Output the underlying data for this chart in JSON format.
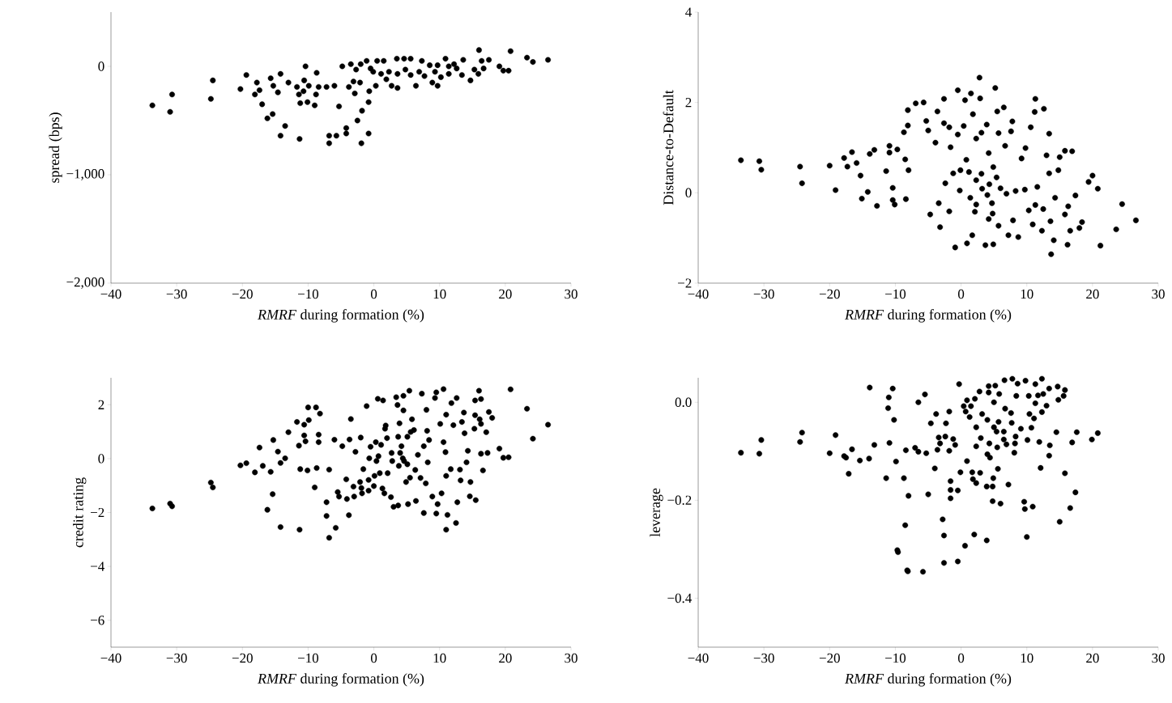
{
  "chart_data": [
    {
      "type": "scatter",
      "xlabel": "*RMRF* during formation (%)",
      "ylabel": "spread (bps)",
      "color": "#000000",
      "marker": "circle",
      "xlim": [
        -40,
        30
      ],
      "ylim": [
        -2000,
        500
      ],
      "xticks": [
        {
          "value": -40,
          "label": "−40"
        },
        {
          "value": -30,
          "label": "−30"
        },
        {
          "value": -20,
          "label": "−20"
        },
        {
          "value": -10,
          "label": "−10"
        },
        0,
        10,
        20,
        30
      ],
      "yticks": [
        {
          "value": -2000,
          "label": "−2,000"
        },
        {
          "value": -1000,
          "label": "−1,000"
        },
        0
      ],
      "x": [
        -33.7,
        -31.0,
        -30.7,
        -24.8,
        -24.5,
        -20.3,
        -19.4,
        -18.1,
        -17.8,
        -17.4,
        -17.0,
        -16.2,
        -15.4,
        -15.7,
        -15.3,
        -14.6,
        -14.2,
        -13.5,
        -14.2,
        -13.0,
        -11.7,
        -11.4,
        -11.2,
        -11.3,
        -10.7,
        -10.4,
        -10.6,
        -10.1,
        -9.9,
        -9.0,
        -8.8,
        -8.7,
        -8.4,
        -7.2,
        -6.8,
        -6.8,
        -6.0,
        -5.7,
        -5.3,
        -4.8,
        -4.2,
        -4.2,
        -3.8,
        -3.5,
        -3.1,
        -2.9,
        -2.7,
        -2.5,
        -2.0,
        -2.1,
        -1.9,
        -1.8,
        -0.8,
        -0.8,
        -0.7,
        -1.1,
        -0.5,
        0.3,
        0.5,
        1.5,
        1.9,
        2.7,
        3.6,
        3.5,
        4.6,
        5.6,
        6.4,
        7.3,
        8.5,
        8.9,
        9.7,
        10.9,
        12.2,
        13.6,
        14.7,
        16.0,
        16.4,
        17.5,
        19.1,
        19.7,
        20.5,
        20.8,
        23.3,
        24.2,
        26.5,
        -0.1,
        1.1,
        2.3,
        3.6,
        4.8,
        5.6,
        6.9,
        7.7,
        9.3,
        10.2,
        11.4,
        12.6,
        13.4,
        15.3,
        15.9,
        16.7,
        9.7,
        11.4
      ],
      "values": [
        -360,
        -420,
        -260,
        -300,
        -130,
        -210,
        -80,
        -260,
        -150,
        -220,
        -350,
        -480,
        -440,
        -110,
        -180,
        -240,
        -70,
        -550,
        -640,
        -150,
        -190,
        -260,
        -340,
        -670,
        -230,
        0,
        -130,
        -330,
        -180,
        -360,
        -260,
        -60,
        -190,
        -190,
        -640,
        -710,
        -180,
        -640,
        -370,
        0,
        -620,
        -570,
        -190,
        20,
        -140,
        -250,
        -30,
        -500,
        20,
        -150,
        -710,
        -410,
        -620,
        -330,
        -230,
        50,
        -20,
        -180,
        50,
        50,
        -120,
        -180,
        -200,
        70,
        70,
        70,
        -180,
        50,
        10,
        -150,
        -180,
        70,
        20,
        60,
        -130,
        150,
        50,
        60,
        0,
        -40,
        -40,
        140,
        80,
        40,
        60,
        -50,
        -70,
        -50,
        -70,
        -30,
        -80,
        -50,
        -90,
        -50,
        -100,
        -70,
        -20,
        -80,
        -30,
        -70,
        -20,
        10,
        0
      ]
    },
    {
      "type": "scatter",
      "xlabel": "*RMRF* during formation (%)",
      "ylabel": "Distance-to-Default",
      "color": "#000000",
      "marker": "circle",
      "xlim": [
        -40,
        30
      ],
      "ylim": [
        -2,
        4
      ],
      "xticks": [
        {
          "value": -40,
          "label": "−40"
        },
        {
          "value": -30,
          "label": "−30"
        },
        {
          "value": -20,
          "label": "−20"
        },
        {
          "value": -10,
          "label": "−10"
        },
        0,
        10,
        20,
        30
      ],
      "yticks": [
        {
          "value": -2,
          "label": "−2"
        },
        0,
        2,
        4
      ],
      "x": [
        -33.5,
        -30.7,
        -30.4,
        -24.5,
        -24.2,
        -20.0,
        -19.1,
        -17.8,
        -17.3,
        -16.6,
        -15.9,
        -15.3,
        -15.1,
        -14.2,
        -13.9,
        -13.2,
        -12.8,
        -11.4,
        -10.9,
        -10.9,
        -10.4,
        -10.4,
        -10.1,
        -9.7,
        -8.7,
        -8.5,
        -8.4,
        -8.1,
        -8.0,
        -8.1,
        -6.9,
        -5.7,
        -5.3,
        -5.0,
        -4.7,
        -3.9,
        -3.6,
        -3.4,
        -3.2,
        -2.6,
        -2.6,
        -2.4,
        -1.8,
        -1.8,
        -1.6,
        -1.2,
        -0.9,
        -0.5,
        -0.5,
        -0.2,
        -0.1,
        0.4,
        0.6,
        0.8,
        0.9,
        1.2,
        1.4,
        1.5,
        1.7,
        1.8,
        2.1,
        2.3,
        2.3,
        2.3,
        2.8,
        2.9,
        3.1,
        3.1,
        3.2,
        3.7,
        3.9,
        4.0,
        4.2,
        4.2,
        4.3,
        4.7,
        4.8,
        4.9,
        4.9,
        5.2,
        5.4,
        5.5,
        5.7,
        5.7,
        6.0,
        6.5,
        6.7,
        6.9,
        7.2,
        7.6,
        7.8,
        7.9,
        8.3,
        8.7,
        9.2,
        9.8,
        9.7,
        10.3,
        10.6,
        10.9,
        11.3,
        11.2,
        11.3,
        11.6,
        12.3,
        12.5,
        12.6,
        13.0,
        13.4,
        13.4,
        13.6,
        14.1,
        13.7,
        14.3,
        14.8,
        15.0,
        15.8,
        15.8,
        16.2,
        16.3,
        16.6,
        16.9,
        17.4,
        18.0,
        18.4,
        19.4,
        20.0,
        20.8,
        21.2,
        23.6,
        24.5,
        26.6
      ],
      "values": [
        0.72,
        0.7,
        0.51,
        0.58,
        0.21,
        0.6,
        0.06,
        0.77,
        0.58,
        0.9,
        0.66,
        0.38,
        -0.13,
        0.02,
        0.86,
        0.95,
        -0.29,
        0.48,
        1.04,
        0.89,
        0.11,
        -0.16,
        -0.26,
        0.96,
        1.34,
        0.74,
        -0.14,
        1.49,
        0.5,
        1.83,
        1.98,
        2.0,
        1.59,
        1.38,
        -0.48,
        1.11,
        1.8,
        -0.23,
        -0.76,
        1.54,
        2.08,
        0.21,
        1.45,
        -0.41,
        1.01,
        0.43,
        -1.21,
        1.29,
        2.27,
        0.05,
        0.5,
        1.48,
        2.05,
        0.73,
        -1.12,
        0.46,
        -0.11,
        2.2,
        -0.94,
        1.74,
        -0.42,
        -0.26,
        1.2,
        0.28,
        2.55,
        2.09,
        1.33,
        0.42,
        0.09,
        -1.16,
        1.51,
        -0.05,
        0.88,
        -0.58,
        0.19,
        -0.23,
        -0.46,
        0.57,
        -1.14,
        2.32,
        0.34,
        1.8,
        1.32,
        -0.73,
        0.1,
        1.89,
        1.04,
        -0.02,
        -0.94,
        1.36,
        1.58,
        -0.61,
        0.04,
        -0.98,
        0.76,
        0.99,
        0.07,
        -0.39,
        1.45,
        -0.7,
        2.08,
        1.79,
        -0.27,
        0.13,
        -0.84,
        -0.36,
        1.86,
        0.83,
        1.31,
        0.43,
        -0.63,
        -1.05,
        -1.36,
        -0.11,
        0.5,
        0.79,
        0.93,
        -0.48,
        -1.15,
        -0.3,
        -0.84,
        0.92,
        -0.06,
        -0.78,
        -0.65,
        0.24,
        0.38,
        0.09,
        -1.17,
        -0.81,
        -0.25,
        -0.61
      ]
    },
    {
      "type": "scatter",
      "xlabel": "*RMRF* during formation (%)",
      "ylabel": "credit rating",
      "color": "#000000",
      "marker": "circle",
      "xlim": [
        -40,
        30
      ],
      "ylim": [
        -7,
        3
      ],
      "xticks": [
        {
          "value": -40,
          "label": "−40"
        },
        {
          "value": -30,
          "label": "−30"
        },
        {
          "value": -20,
          "label": "−20"
        },
        {
          "value": -10,
          "label": "−10"
        },
        0,
        10,
        20,
        30
      ],
      "yticks": [
        {
          "value": -6,
          "label": "−6"
        },
        {
          "value": -4,
          "label": "−4"
        },
        {
          "value": -2,
          "label": "−2"
        },
        0,
        2
      ],
      "x": [
        -33.7,
        -31.0,
        -30.7,
        -24.8,
        -24.5,
        -20.3,
        -19.4,
        -18.1,
        -17.4,
        -16.9,
        -16.2,
        -15.7,
        -15.4,
        -15.3,
        -14.6,
        -14.2,
        -14.2,
        -13.5,
        -13.0,
        -11.7,
        -11.4,
        -11.3,
        -11.2,
        -10.6,
        -10.6,
        -10.4,
        -10.1,
        -9.9,
        -10.0,
        -9.0,
        -8.8,
        -8.7,
        -8.4,
        -8.4,
        -8.2,
        -7.2,
        -7.2,
        -6.8,
        -6.8,
        -6.0,
        -5.8,
        -5.5,
        -5.3,
        -4.8,
        -4.2,
        -4.1,
        -3.8,
        -3.7,
        -3.5,
        -3.1,
        -3.0,
        -2.8,
        -2.1,
        -2.0,
        -1.9,
        -1.8,
        -1.6,
        -1.1,
        -0.8,
        -0.8,
        -0.7,
        -0.5,
        0.0,
        0.1,
        0.3,
        0.4,
        0.6,
        0.7,
        0.9,
        1.1,
        1.3,
        1.4,
        1.6,
        1.7,
        1.8,
        2.0,
        2.1,
        2.6,
        2.7,
        2.8,
        3.0,
        3.4,
        3.6,
        3.7,
        3.7,
        3.8,
        3.9,
        4.0,
        4.2,
        4.4,
        4.5,
        4.5,
        4.6,
        4.9,
        5.1,
        5.1,
        5.2,
        5.4,
        5.5,
        5.6,
        5.8,
        6.1,
        6.3,
        6.4,
        6.7,
        7.1,
        7.3,
        7.6,
        7.6,
        7.9,
        8.0,
        8.1,
        8.2,
        8.4,
        8.9,
        9.3,
        9.5,
        9.5,
        9.7,
        10.1,
        10.3,
        10.6,
        10.6,
        10.9,
        11.0,
        11.0,
        11.0,
        11.2,
        11.7,
        11.8,
        12.1,
        12.5,
        12.6,
        12.7,
        13.1,
        13.2,
        13.4,
        13.7,
        13.8,
        14.1,
        14.3,
        14.6,
        14.7,
        15.3,
        15.4,
        15.4,
        15.5,
        16.0,
        16.1,
        16.3,
        16.3,
        16.3,
        16.6,
        17.1,
        17.3,
        17.5,
        18.0,
        19.1,
        19.7,
        20.5,
        20.8,
        23.3,
        24.2,
        26.5
      ],
      "values": [
        -1.85,
        -1.67,
        -1.77,
        -0.89,
        -1.07,
        -0.25,
        -0.17,
        -0.51,
        0.41,
        -0.27,
        -1.9,
        -0.49,
        -1.32,
        0.69,
        0.26,
        -0.16,
        -2.54,
        0.01,
        0.98,
        1.36,
        0.48,
        -2.64,
        -0.39,
        1.26,
        0.86,
        0.64,
        -0.44,
        1.43,
        1.9,
        -1.07,
        1.9,
        -0.35,
        0.89,
        0.61,
        1.67,
        -1.62,
        -2.13,
        -2.94,
        -0.41,
        0.7,
        -2.57,
        -1.24,
        -1.41,
        0.46,
        -0.77,
        -1.5,
        -2.1,
        0.71,
        1.47,
        -1.04,
        -1.41,
        0.25,
        -0.87,
        0.78,
        -1.09,
        -1.29,
        -0.39,
        1.95,
        -1.19,
        -0.79,
        0.01,
        0.44,
        -1.02,
        -0.64,
        0.61,
        -0.09,
        2.22,
        0.09,
        -0.54,
        0.51,
        -1.11,
        2.16,
        -1.29,
        1.11,
        1.23,
        0.76,
        -0.54,
        -1.43,
        0.21,
        -0.09,
        -1.79,
        2.28,
        1.99,
        -1.74,
        0.81,
        -0.27,
        1.31,
        0.21,
        0.46,
        0.01,
        2.33,
        1.79,
        -0.09,
        -0.87,
        0.81,
        -0.21,
        -1.69,
        2.52,
        -0.71,
        0.99,
        1.46,
        1.06,
        -0.42,
        -1.57,
        0.14,
        -0.72,
        2.41,
        -2.02,
        0.46,
        -0.92,
        1.81,
        1.03,
        -0.14,
        0.69,
        -1.41,
        2.25,
        2.46,
        -2.04,
        -1.69,
        1.29,
        -1.29,
        0.61,
        2.58,
        0.24,
        1.63,
        -2.64,
        -0.64,
        -2.09,
        -0.39,
        2.06,
        1.24,
        -2.39,
        2.25,
        -1.62,
        -0.41,
        -0.81,
        1.36,
        1.71,
        0.94,
        -0.14,
        0.29,
        -1.4,
        -0.87,
        1.11,
        2.16,
        1.61,
        -1.54,
        2.52,
        1.46,
        2.21,
        1.29,
        0.18,
        -0.44,
        0.98,
        0.21,
        1.73,
        1.51,
        0.37,
        0.03,
        0.05,
        2.57,
        1.85,
        0.74,
        1.26
      ]
    },
    {
      "type": "scatter",
      "xlabel": "*RMRF* during formation (%)",
      "ylabel": "leverage",
      "color": "#000000",
      "marker": "circle",
      "xlim": [
        -40,
        30
      ],
      "ylim": [
        -0.5,
        0.05
      ],
      "xticks": [
        {
          "value": -40,
          "label": "−40"
        },
        {
          "value": -30,
          "label": "−30"
        },
        {
          "value": -20,
          "label": "−20"
        },
        {
          "value": -10,
          "label": "−10"
        },
        0,
        10,
        20,
        30
      ],
      "yticks": [
        {
          "value": -0.4,
          "label": "−0.4"
        },
        {
          "value": -0.2,
          "label": "−0.2"
        },
        {
          "value": 0,
          "label": "0.0"
        }
      ],
      "x": [
        -33.5,
        -30.7,
        -30.4,
        -24.5,
        -24.2,
        -20.0,
        -19.1,
        -17.8,
        -17.5,
        -17.1,
        -16.6,
        -15.4,
        -14.0,
        -13.9,
        -13.2,
        -11.4,
        -11.1,
        -11.0,
        -10.9,
        -10.4,
        -10.2,
        -9.9,
        -9.7,
        -9.6,
        -8.7,
        -8.5,
        -8.4,
        -8.2,
        -8.1,
        -8.0,
        -7.0,
        -6.5,
        -6.5,
        -5.8,
        -5.5,
        -5.3,
        -5.0,
        -4.6,
        -4.0,
        -3.8,
        -3.6,
        -3.4,
        -3.2,
        -2.8,
        -2.6,
        -2.6,
        -2.4,
        -2.3,
        -1.8,
        -1.8,
        -1.6,
        -1.6,
        -1.6,
        -1.2,
        -0.9,
        -0.5,
        -0.5,
        -0.3,
        -0.1,
        0.4,
        0.6,
        0.7,
        0.9,
        0.9,
        1.3,
        1.5,
        1.7,
        1.8,
        2.0,
        2.1,
        2.3,
        2.3,
        2.3,
        2.8,
        2.9,
        3.0,
        3.2,
        3.9,
        3.9,
        4.0,
        4.0,
        4.2,
        4.2,
        4.3,
        4.4,
        4.8,
        4.8,
        4.9,
        5.0,
        5.0,
        5.2,
        5.4,
        5.5,
        5.6,
        5.7,
        5.8,
        6.0,
        6.5,
        6.5,
        6.6,
        6.7,
        6.9,
        7.2,
        7.6,
        7.7,
        7.8,
        8.1,
        8.2,
        8.3,
        8.4,
        8.6,
        9.1,
        9.6,
        9.7,
        9.8,
        10.0,
        10.1,
        10.3,
        10.4,
        10.7,
        10.9,
        11.1,
        11.3,
        11.3,
        11.7,
        11.9,
        12.1,
        12.3,
        12.3,
        12.5,
        13.0,
        13.4,
        13.4,
        13.5,
        14.5,
        14.7,
        14.8,
        15.0,
        15.6,
        15.8,
        15.8,
        16.6,
        16.9,
        17.4,
        17.6,
        19.9,
        20.8
      ],
      "values": [
        -0.103,
        -0.105,
        -0.077,
        -0.081,
        -0.062,
        -0.104,
        -0.067,
        -0.11,
        -0.113,
        -0.146,
        -0.096,
        -0.119,
        -0.115,
        0.03,
        -0.087,
        -0.155,
        -0.012,
        0.01,
        -0.083,
        0.028,
        -0.036,
        -0.121,
        -0.302,
        -0.306,
        -0.155,
        -0.251,
        -0.098,
        -0.343,
        -0.345,
        -0.191,
        -0.093,
        0.0,
        -0.101,
        -0.346,
        0.016,
        -0.104,
        -0.188,
        -0.043,
        -0.135,
        -0.024,
        -0.097,
        -0.072,
        -0.084,
        -0.239,
        -0.272,
        -0.328,
        -0.07,
        -0.043,
        -0.019,
        -0.099,
        -0.161,
        -0.179,
        -0.196,
        -0.075,
        -0.087,
        -0.18,
        -0.325,
        0.037,
        -0.143,
        -0.008,
        -0.293,
        -0.019,
        -0.12,
        0.004,
        -0.03,
        -0.008,
        -0.143,
        -0.157,
        -0.27,
        0.007,
        -0.165,
        -0.09,
        -0.051,
        0.022,
        -0.144,
        -0.073,
        -0.024,
        -0.172,
        -0.282,
        -0.106,
        -0.036,
        0.033,
        0.02,
        -0.084,
        -0.113,
        -0.202,
        -0.172,
        -0.155,
        0.0,
        -0.051,
        0.034,
        -0.06,
        -0.092,
        -0.136,
        -0.04,
        0.017,
        -0.207,
        -0.076,
        -0.06,
        0.045,
        -0.013,
        -0.086,
        -0.168,
        -0.022,
        -0.042,
        0.048,
        -0.103,
        -0.084,
        -0.07,
        0.013,
        0.038,
        -0.054,
        -0.203,
        -0.218,
        0.044,
        -0.275,
        -0.077,
        0.013,
        -0.024,
        -0.052,
        -0.213,
        -0.033,
        0.037,
        -0.002,
        0.014,
        -0.081,
        -0.134,
        0.048,
        -0.02,
        0.017,
        -0.007,
        0.028,
        -0.109,
        -0.088,
        -0.061,
        0.032,
        0.005,
        -0.244,
        0.013,
        0.025,
        -0.145,
        -0.216,
        -0.082,
        -0.184,
        -0.061,
        -0.076,
        -0.063
      ]
    }
  ]
}
